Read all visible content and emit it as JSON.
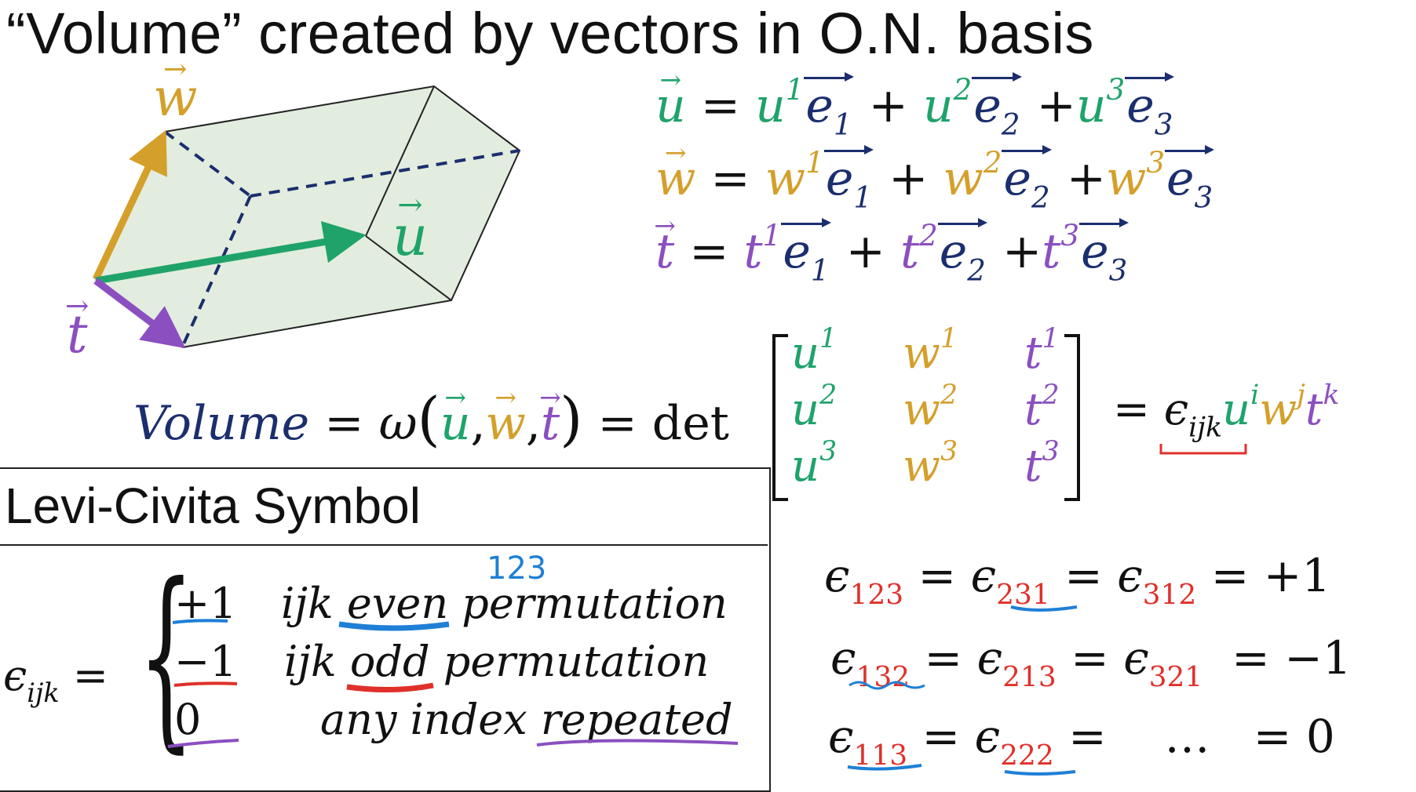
{
  "title": "“Volume” created by vectors in O.N. basis",
  "colors": {
    "u": "#1fa36b",
    "w": "#d4a02b",
    "t": "#8b4fc0",
    "basis": "#1b2e6e",
    "index": "#e0302a",
    "underline_blue": "#1f7fd6"
  },
  "diagram": {
    "label_w": "w",
    "label_u": "u",
    "label_t": "t"
  },
  "expansions": [
    {
      "lhs": "u",
      "coef": "u"
    },
    {
      "lhs": "w",
      "coef": "w"
    },
    {
      "lhs": "t",
      "coef": "t"
    }
  ],
  "volume": {
    "label": "Volume",
    "omega": "ω",
    "det": "det",
    "epsilon": "ϵ",
    "sub": "ijk",
    "sup_u": "i",
    "sup_w": "j",
    "sup_t": "k",
    "matrix": [
      [
        "u",
        "1",
        "w",
        "1",
        "t",
        "1"
      ],
      [
        "u",
        "2",
        "w",
        "2",
        "t",
        "2"
      ],
      [
        "u",
        "3",
        "w",
        "3",
        "t",
        "3"
      ]
    ]
  },
  "levi_civita": {
    "heading": "Levi-Civita Symbol",
    "lhs": "ϵ",
    "lhs_sub": "ijk",
    "handwritten_note": "123",
    "cases": [
      {
        "value": "+1",
        "desc_a": "ijk",
        "desc_b": "even",
        "desc_c": "permutation"
      },
      {
        "value": "−1",
        "desc_a": "ijk",
        "desc_b": "odd",
        "desc_c": "permutation"
      },
      {
        "value": "0",
        "desc_a": "any index",
        "desc_b": "repeated",
        "desc_c": ""
      }
    ]
  },
  "examples": [
    {
      "terms": [
        "123",
        "231",
        "312"
      ],
      "result": "+1"
    },
    {
      "terms": [
        "132",
        "213",
        "321"
      ],
      "result": "−1"
    },
    {
      "terms": [
        "113",
        "222"
      ],
      "ellipsis": "…",
      "result": "0"
    }
  ]
}
